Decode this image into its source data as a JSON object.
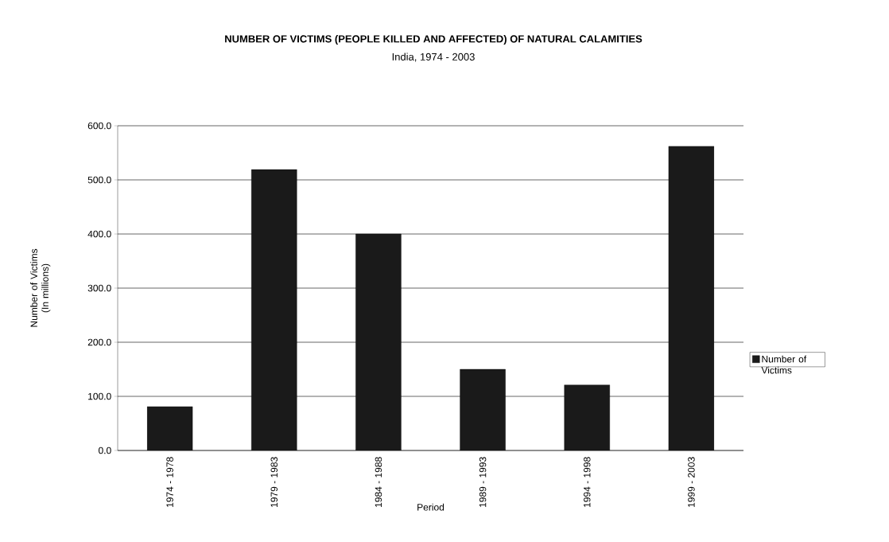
{
  "chart_data": {
    "type": "bar",
    "title": "NUMBER OF VICTIMS (PEOPLE KILLED AND AFFECTED) OF NATURAL CALAMITIES",
    "subtitle": "India, 1974 - 2003",
    "xlabel": "Period",
    "ylabel": "Number of Victims (In millions)",
    "categories": [
      "1974 - 1978",
      "1979 - 1983",
      "1984 - 1988",
      "1989 - 1993",
      "1994 - 1998",
      "1999 - 2003"
    ],
    "series": [
      {
        "name": "Number of Victims",
        "color": "#1a1a1a",
        "values": [
          81,
          519,
          400,
          150,
          121,
          562
        ]
      }
    ],
    "ylim": [
      0,
      600
    ],
    "yticks": [
      {
        "value": 0,
        "label": "0.0"
      },
      {
        "value": 100,
        "label": "100.0"
      },
      {
        "value": 200,
        "label": "200.0"
      },
      {
        "value": 300,
        "label": "300.0"
      },
      {
        "value": 400,
        "label": "400.0"
      },
      {
        "value": 500,
        "label": "500.0"
      },
      {
        "value": 600,
        "label": "600.0"
      }
    ],
    "grid": "y",
    "legend": "right"
  }
}
